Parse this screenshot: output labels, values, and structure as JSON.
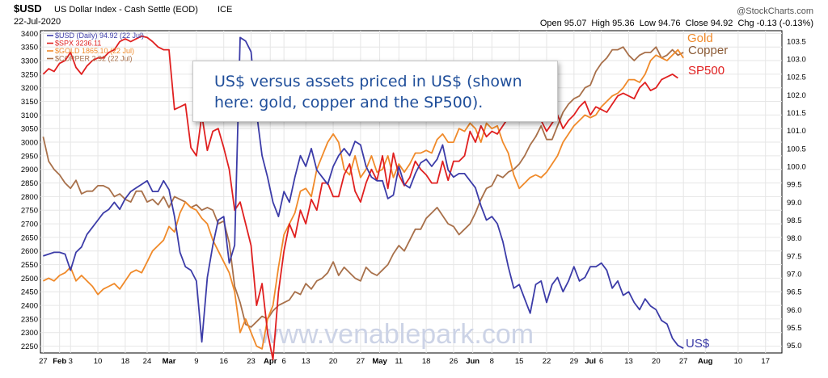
{
  "header": {
    "symbol": "$USD",
    "description": "US Dollar Index - Cash Settle (EOD)",
    "exchange": "ICE",
    "date": "22-Jul-2020",
    "brand": "@StockCharts.com",
    "ohlc_line": "Open 95.07  High 95.36  Low 94.76  Close 94.92  Chg -0.13 (-0.13%)"
  },
  "legend": [
    {
      "text": "$USD (Daily) 94.92 (22 Jul)",
      "color": "#3c3ca8"
    },
    {
      "text": "$SPX 3236.11",
      "color": "#e02020"
    },
    {
      "text": "$GOLD 1865.10 (22 Jul)",
      "color": "#f08a2a"
    },
    {
      "text": "$COPPER 2.92 (22 Jul)",
      "color": "#a8704a"
    }
  ],
  "annotation": "US$ versus assets priced in US$ (shown here: gold, copper and the SP500).",
  "watermark": "www.venablepark.com",
  "end_labels": [
    {
      "text": "Gold",
      "color": "#f08a2a"
    },
    {
      "text": "Copper",
      "color": "#8a5a35"
    },
    {
      "text": "SP500",
      "color": "#e02020"
    },
    {
      "text": "US$",
      "color": "#3c3ca8"
    }
  ],
  "chart_data": {
    "type": "line",
    "x_tick_labels": [
      "27",
      "Feb",
      "3",
      "10",
      "18",
      "24",
      "Mar",
      "9",
      "16",
      "23",
      "Apr",
      "6",
      "13",
      "20",
      "27",
      "May",
      "11",
      "18",
      "26",
      "Jun",
      "8",
      "15",
      "22",
      "29",
      "Jul",
      "6",
      "13",
      "20",
      "27",
      "Aug",
      "10",
      "17"
    ],
    "x_tick_index": [
      0,
      3,
      5,
      10,
      15,
      19,
      23,
      28,
      33,
      38,
      41.5,
      44,
      48,
      53,
      58,
      61.5,
      65,
      70,
      75,
      78.5,
      82,
      87,
      92,
      97,
      100,
      102,
      107,
      112,
      117,
      121,
      127,
      132
    ],
    "x_range": [
      -0.5,
      135
    ],
    "y_left": {
      "range": [
        2225,
        3410
      ],
      "ticks": [
        2250,
        2300,
        2350,
        2400,
        2450,
        2500,
        2550,
        2600,
        2650,
        2700,
        2750,
        2800,
        2850,
        2900,
        2950,
        3000,
        3050,
        3100,
        3150,
        3200,
        3250,
        3300,
        3350,
        3400
      ]
    },
    "y_right": {
      "range": [
        94.79,
        103.79
      ],
      "ticks": [
        95.0,
        95.5,
        96.0,
        96.5,
        97.0,
        97.5,
        98.0,
        98.5,
        99.0,
        99.5,
        100.0,
        100.5,
        101.0,
        101.5,
        102.0,
        102.5,
        103.0,
        103.5
      ]
    },
    "series": [
      {
        "name": "$USD",
        "color": "#3c3ca8",
        "axis": "right",
        "values": [
          97.5,
          97.55,
          97.6,
          97.6,
          97.55,
          97.1,
          97.6,
          97.75,
          98.1,
          98.3,
          98.5,
          98.7,
          98.8,
          99.0,
          98.8,
          99.1,
          99.3,
          99.4,
          99.5,
          99.6,
          99.3,
          99.3,
          99.6,
          99.35,
          98.6,
          97.6,
          97.2,
          97.1,
          96.8,
          95.1,
          96.9,
          97.8,
          98.5,
          98.6,
          97.3,
          97.8,
          103.6,
          103.5,
          103.2,
          101.5,
          100.3,
          99.7,
          99.0,
          98.6,
          99.3,
          99.0,
          99.7,
          100.3,
          100.0,
          100.5,
          99.9,
          99.7,
          99.5,
          100.0,
          100.3,
          100.5,
          100.3,
          100.7,
          100.6,
          100.0,
          99.7,
          99.6,
          99.6,
          99.1,
          99.2,
          100.0,
          99.5,
          99.4,
          99.8,
          100.1,
          100.2,
          100.0,
          100.2,
          100.6,
          99.9,
          99.7,
          99.8,
          99.8,
          99.6,
          99.4,
          98.9,
          98.5,
          98.6,
          98.4,
          97.9,
          97.2,
          96.6,
          96.7,
          96.3,
          95.9,
          96.7,
          96.8,
          96.2,
          96.7,
          96.9,
          96.5,
          96.8,
          97.2,
          96.8,
          96.9,
          97.2,
          97.2,
          97.3,
          97.1,
          96.6,
          96.8,
          96.4,
          96.5,
          96.2,
          96.0,
          96.3,
          96.1,
          96.0,
          95.7,
          95.6,
          95.2,
          95.0,
          94.92
        ]
      },
      {
        "name": "$SPX",
        "color": "#e02020",
        "axis": "left",
        "values": [
          3250,
          3270,
          3260,
          3290,
          3300,
          3330,
          3275,
          3250,
          3280,
          3300,
          3310,
          3310,
          3330,
          3340,
          3370,
          3380,
          3370,
          3380,
          3390,
          3385,
          3370,
          3350,
          3340,
          3340,
          3120,
          3130,
          3140,
          2980,
          2950,
          3100,
          2970,
          3040,
          3050,
          2980,
          2900,
          2750,
          2780,
          2700,
          2620,
          2400,
          2480,
          2300,
          2200,
          2450,
          2600,
          2700,
          2650,
          2750,
          2700,
          2790,
          2750,
          2850,
          2850,
          2800,
          2800,
          2880,
          2920,
          2820,
          2780,
          2850,
          2900,
          2860,
          2950,
          2830,
          2960,
          2880,
          2840,
          2870,
          2930,
          2900,
          2880,
          2850,
          2850,
          2930,
          2860,
          2930,
          2930,
          2950,
          3040,
          3000,
          3060,
          3020,
          3040,
          3030,
          3060,
          3090,
          3110,
          3130,
          3200,
          3190,
          3130,
          3080,
          3040,
          3070,
          3100,
          3050,
          3080,
          3100,
          3130,
          3150,
          3100,
          3130,
          3120,
          3110,
          3140,
          3170,
          3180,
          3170,
          3160,
          3200,
          3220,
          3190,
          3200,
          3230,
          3240,
          3250,
          3236
        ]
      },
      {
        "name": "$GOLD",
        "color": "#f08a2a",
        "axis": "left",
        "values": [
          2490,
          2500,
          2490,
          2510,
          2520,
          2540,
          2490,
          2510,
          2490,
          2470,
          2440,
          2460,
          2470,
          2480,
          2460,
          2490,
          2520,
          2530,
          2520,
          2560,
          2600,
          2620,
          2640,
          2690,
          2670,
          2740,
          2780,
          2760,
          2750,
          2720,
          2700,
          2640,
          2600,
          2560,
          2520,
          2450,
          2300,
          2350,
          2300,
          2250,
          2240,
          2350,
          2400,
          2540,
          2660,
          2700,
          2740,
          2820,
          2830,
          2800,
          2900,
          2950,
          3000,
          3030,
          3000,
          2900,
          2880,
          2950,
          2870,
          2900,
          2950,
          2890,
          2900,
          2950,
          2870,
          2920,
          2890,
          2920,
          2960,
          2960,
          2970,
          2960,
          3010,
          3030,
          3000,
          3000,
          3050,
          3040,
          3070,
          3050,
          3000,
          3070,
          3050,
          3060,
          3000,
          2960,
          2880,
          2830,
          2850,
          2870,
          2880,
          2870,
          2890,
          2920,
          2950,
          3000,
          3030,
          3060,
          3080,
          3100,
          3090,
          3100,
          3130,
          3150,
          3170,
          3180,
          3200,
          3230,
          3230,
          3220,
          3250,
          3300,
          3320,
          3310,
          3300,
          3320,
          3340,
          3310
        ]
      },
      {
        "name": "$COPPER",
        "color": "#a8704a",
        "axis": "left",
        "values": [
          3020,
          2930,
          2900,
          2880,
          2850,
          2830,
          2860,
          2810,
          2820,
          2820,
          2840,
          2840,
          2830,
          2800,
          2810,
          2790,
          2780,
          2820,
          2820,
          2780,
          2790,
          2770,
          2800,
          2760,
          2800,
          2790,
          2780,
          2760,
          2770,
          2750,
          2760,
          2750,
          2700,
          2710,
          2630,
          2470,
          2410,
          2330,
          2320,
          2340,
          2360,
          2350,
          2380,
          2400,
          2410,
          2420,
          2450,
          2440,
          2480,
          2460,
          2490,
          2500,
          2520,
          2560,
          2510,
          2540,
          2520,
          2500,
          2490,
          2540,
          2520,
          2510,
          2530,
          2550,
          2590,
          2620,
          2600,
          2640,
          2680,
          2680,
          2720,
          2740,
          2760,
          2730,
          2700,
          2690,
          2660,
          2680,
          2700,
          2740,
          2790,
          2830,
          2840,
          2880,
          2870,
          2890,
          2900,
          2920,
          2950,
          2990,
          3020,
          3060,
          3010,
          3010,
          3060,
          3110,
          3140,
          3160,
          3170,
          3200,
          3210,
          3260,
          3290,
          3310,
          3340,
          3340,
          3350,
          3320,
          3300,
          3320,
          3330,
          3330,
          3350,
          3310,
          3320,
          3340,
          3320,
          3330
        ]
      }
    ]
  }
}
